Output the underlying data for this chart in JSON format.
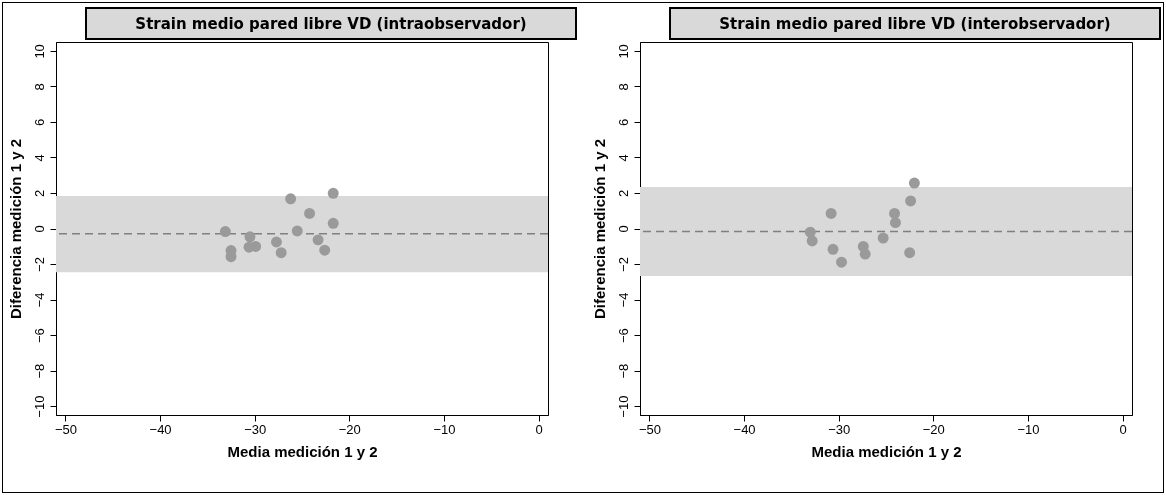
{
  "chart_data": [
    {
      "type": "scatter",
      "title": "Strain medio pared libre VD (intraobservador)",
      "xlabel": "Media medición 1 y 2",
      "ylabel": "Diferencia medición 1 y 2",
      "xlim": [
        -51,
        1
      ],
      "ylim": [
        -10.5,
        10.5
      ],
      "xticks": [
        -50,
        -40,
        -30,
        -20,
        -10,
        0
      ],
      "yticks": [
        -10,
        -8,
        -6,
        -4,
        -2,
        0,
        2,
        4,
        6,
        8,
        10
      ],
      "grid": false,
      "marker": "circle",
      "x": [
        -33.1,
        -32.5,
        -32.5,
        -30.5,
        -30.6,
        -29.9,
        -27.7,
        -27.2,
        -26.2,
        -25.5,
        -24.2,
        -23.3,
        -22.6,
        -21.7,
        -21.7
      ],
      "series": [
        {
          "color": "#9a9a9a",
          "values": [
            -0.17,
            -1.24,
            -1.59,
            -0.47,
            -1.05,
            -1.01,
            -0.76,
            -1.36,
            1.67,
            -0.14,
            0.85,
            -0.64,
            -1.22,
            1.98,
            0.29
          ]
        }
      ],
      "bands": [
        {
          "axis": "y",
          "from": -2.47,
          "to": 1.83,
          "color": "#d9d9d9"
        }
      ],
      "ref_lines": [
        {
          "axis": "y",
          "value": -0.29,
          "color": "#808080",
          "line_style": "dashed"
        }
      ]
    },
    {
      "type": "scatter",
      "title": "Strain medio pared libre VD (interobservador)",
      "xlabel": "Media medición 1 y 2",
      "ylabel": "Diferencia medición 1 y 2",
      "xlim": [
        -51,
        1
      ],
      "ylim": [
        -10.5,
        10.5
      ],
      "xticks": [
        -50,
        -40,
        -30,
        -20,
        -10,
        0
      ],
      "yticks": [
        -10,
        -8,
        -6,
        -4,
        -2,
        0,
        2,
        4,
        6,
        8,
        10
      ],
      "grid": false,
      "marker": "circle",
      "x": [
        -33.0,
        -32.8,
        -30.8,
        -30.6,
        -29.7,
        -27.4,
        -27.2,
        -25.3,
        -24.1,
        -24.0,
        -22.5,
        -22.4,
        -22.0
      ],
      "series": [
        {
          "color": "#9a9a9a",
          "values": [
            -0.21,
            -0.7,
            0.85,
            -1.17,
            -1.9,
            -1.01,
            -1.44,
            -0.54,
            0.85,
            0.33,
            -1.36,
            1.55,
            2.56
          ]
        }
      ],
      "bands": [
        {
          "axis": "y",
          "from": -2.68,
          "to": 2.33,
          "color": "#d9d9d9"
        }
      ],
      "ref_lines": [
        {
          "axis": "y",
          "value": -0.17,
          "color": "#808080",
          "line_style": "dashed"
        }
      ]
    }
  ]
}
